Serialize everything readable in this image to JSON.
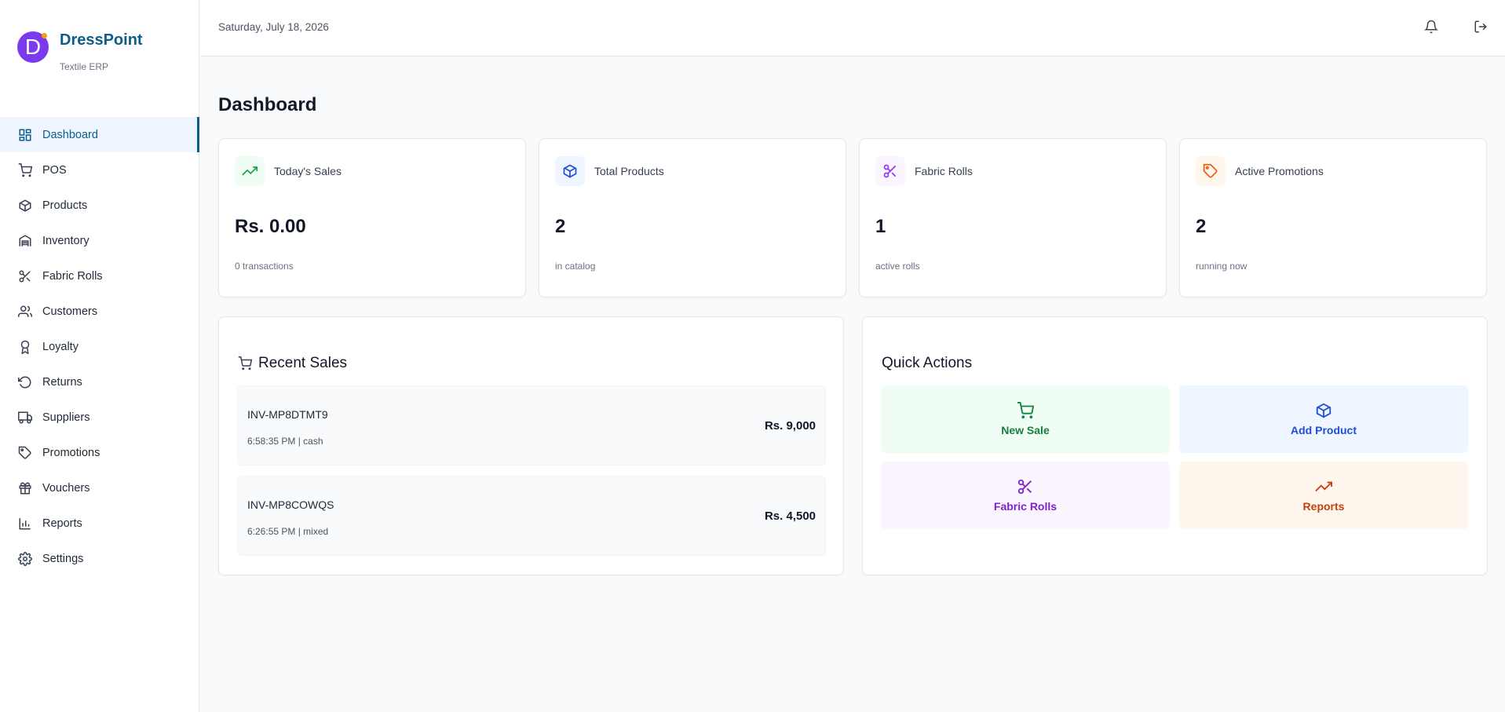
{
  "brand": {
    "initial": "D",
    "name": "DressPoint",
    "subtitle": "Textile ERP"
  },
  "header": {
    "date": "Saturday, July 18, 2026"
  },
  "sidebar": {
    "items": [
      {
        "label": "Dashboard",
        "icon": "dashboard-icon",
        "active": true
      },
      {
        "label": "POS",
        "icon": "cart-icon"
      },
      {
        "label": "Products",
        "icon": "box-icon"
      },
      {
        "label": "Inventory",
        "icon": "warehouse-icon"
      },
      {
        "label": "Fabric Rolls",
        "icon": "scissors-icon"
      },
      {
        "label": "Customers",
        "icon": "users-icon"
      },
      {
        "label": "Loyalty",
        "icon": "award-icon"
      },
      {
        "label": "Returns",
        "icon": "rotate-ccw-icon"
      },
      {
        "label": "Suppliers",
        "icon": "truck-icon"
      },
      {
        "label": "Promotions",
        "icon": "tag-icon"
      },
      {
        "label": "Vouchers",
        "icon": "gift-icon"
      },
      {
        "label": "Reports",
        "icon": "bar-chart-icon"
      },
      {
        "label": "Settings",
        "icon": "gear-icon"
      }
    ]
  },
  "main": {
    "title": "Dashboard",
    "stats": [
      {
        "label": "Today's Sales",
        "value": "Rs. 0.00",
        "sub": "0 transactions",
        "icon": "trending-up-icon",
        "color": "#16a34a",
        "bg": "#f0fdf4"
      },
      {
        "label": "Total Products",
        "value": "2",
        "sub": "in catalog",
        "icon": "box-icon",
        "color": "#1d4ed8",
        "bg": "#eff6ff"
      },
      {
        "label": "Fabric Rolls",
        "value": "1",
        "sub": "active rolls",
        "icon": "scissors-icon",
        "color": "#9333ea",
        "bg": "#faf5ff"
      },
      {
        "label": "Active Promotions",
        "value": "2",
        "sub": "running now",
        "icon": "tag-icon",
        "color": "#ea580c",
        "bg": "#fff7ed"
      }
    ],
    "recent_sales": {
      "title": "Recent Sales",
      "items": [
        {
          "id": "INV-MP8DTMT9",
          "meta": "6:58:35 PM | cash",
          "amount": "Rs. 9,000"
        },
        {
          "id": "INV-MP8COWQS",
          "meta": "6:26:55 PM | mixed",
          "amount": "Rs. 4,500"
        }
      ]
    },
    "quick_actions": {
      "title": "Quick Actions",
      "items": [
        {
          "label": "New Sale",
          "icon": "cart-icon",
          "color": "#15803d",
          "bg": "#f0fdf4"
        },
        {
          "label": "Add Product",
          "icon": "box-icon",
          "color": "#1d4ed8",
          "bg": "#eff6ff"
        },
        {
          "label": "Fabric Rolls",
          "icon": "scissors-icon",
          "color": "#7e22ce",
          "bg": "#faf5ff"
        },
        {
          "label": "Reports",
          "icon": "trending-up-icon",
          "color": "#c2410c",
          "bg": "#fff7ed"
        }
      ]
    }
  }
}
